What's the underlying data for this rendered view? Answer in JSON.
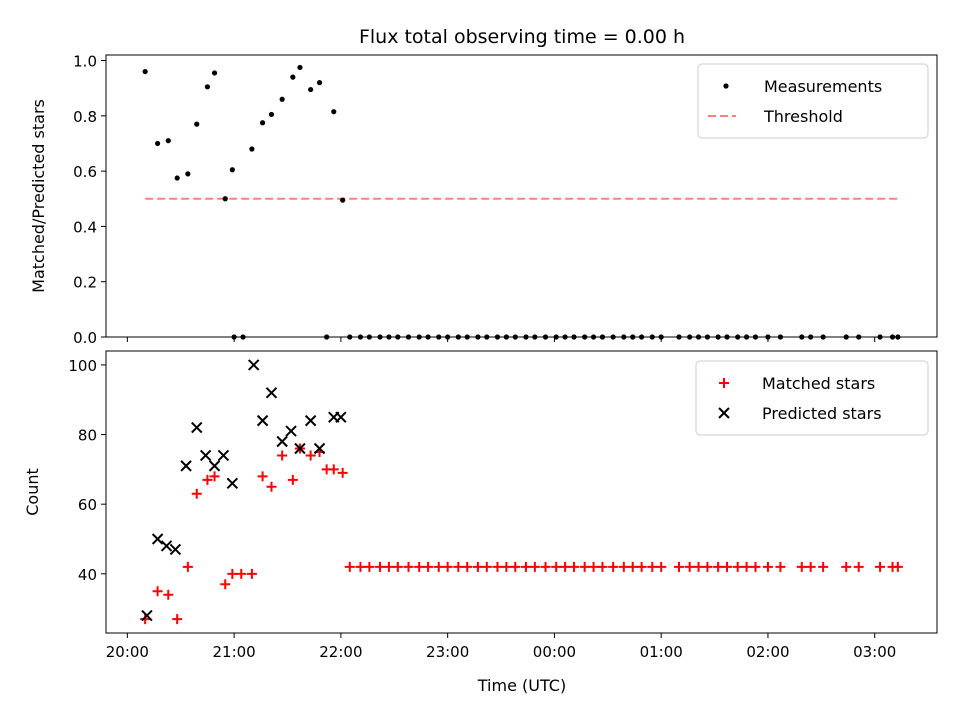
{
  "chart_data": [
    {
      "type": "scatter",
      "title": "Flux total observing time = 0.00 h",
      "ylabel": "Matched/Predicted stars",
      "ylim": [
        0,
        1.02
      ],
      "yticks": [
        0.0,
        0.2,
        0.4,
        0.6,
        0.8,
        1.0
      ],
      "legend_position": "top-right",
      "series": [
        {
          "name": "Measurements",
          "color": "#000000",
          "marker": "dot",
          "points": [
            [
              "20:10",
              0.96
            ],
            [
              "20:17",
              0.7
            ],
            [
              "20:23",
              0.71
            ],
            [
              "20:28",
              0.575
            ],
            [
              "20:34",
              0.59
            ],
            [
              "20:39",
              0.77
            ],
            [
              "20:45",
              0.905
            ],
            [
              "20:49",
              0.955
            ],
            [
              "20:55",
              0.5
            ],
            [
              "20:59",
              0.605
            ],
            [
              "21:00",
              0.0
            ],
            [
              "21:05",
              0.0
            ],
            [
              "21:10",
              0.68
            ],
            [
              "21:16",
              0.775
            ],
            [
              "21:21",
              0.805
            ],
            [
              "21:27",
              0.86
            ],
            [
              "21:33",
              0.94
            ],
            [
              "21:37",
              0.975
            ],
            [
              "21:43",
              0.895
            ],
            [
              "21:48",
              0.92
            ],
            [
              "21:52",
              0.0
            ],
            [
              "21:56",
              0.815
            ],
            [
              "22:01",
              0.495
            ],
            [
              "22:05",
              0.0
            ],
            [
              "22:11",
              0.0
            ],
            [
              "22:16",
              0.0
            ],
            [
              "22:22",
              0.0
            ],
            [
              "22:27",
              0.0
            ],
            [
              "22:32",
              0.0
            ],
            [
              "22:38",
              0.0
            ],
            [
              "22:44",
              0.0
            ],
            [
              "22:49",
              0.0
            ],
            [
              "22:55",
              0.0
            ],
            [
              "23:00",
              0.0
            ],
            [
              "23:06",
              0.0
            ],
            [
              "23:11",
              0.0
            ],
            [
              "23:17",
              0.0
            ],
            [
              "23:22",
              0.0
            ],
            [
              "23:28",
              0.0
            ],
            [
              "23:33",
              0.0
            ],
            [
              "23:38",
              0.0
            ],
            [
              "23:44",
              0.0
            ],
            [
              "23:49",
              0.0
            ],
            [
              "23:55",
              0.0
            ],
            [
              "00:01",
              0.0
            ],
            [
              "00:06",
              0.0
            ],
            [
              "00:11",
              0.0
            ],
            [
              "00:17",
              0.0
            ],
            [
              "00:22",
              0.0
            ],
            [
              "00:27",
              0.0
            ],
            [
              "00:33",
              0.0
            ],
            [
              "00:39",
              0.0
            ],
            [
              "00:44",
              0.0
            ],
            [
              "00:49",
              0.0
            ],
            [
              "00:55",
              0.0
            ],
            [
              "01:00",
              0.0
            ],
            [
              "01:10",
              0.0
            ],
            [
              "01:16",
              0.0
            ],
            [
              "01:21",
              0.0
            ],
            [
              "01:26",
              0.0
            ],
            [
              "01:32",
              0.0
            ],
            [
              "01:37",
              0.0
            ],
            [
              "01:43",
              0.0
            ],
            [
              "01:48",
              0.0
            ],
            [
              "01:53",
              0.0
            ],
            [
              "02:00",
              0.0
            ],
            [
              "02:07",
              0.0
            ],
            [
              "02:19",
              0.0
            ],
            [
              "02:24",
              0.0
            ],
            [
              "02:31",
              0.0
            ],
            [
              "02:44",
              0.0
            ],
            [
              "02:51",
              0.0
            ],
            [
              "03:03",
              0.0
            ],
            [
              "03:10",
              0.0
            ],
            [
              "03:13",
              0.0
            ]
          ]
        },
        {
          "name": "Threshold",
          "color": "#ff7f7f",
          "line": "dashed",
          "points": [
            [
              "20:10",
              0.5
            ],
            [
              "03:14",
              0.5
            ]
          ]
        }
      ]
    },
    {
      "type": "scatter",
      "xlabel": "Time (UTC)",
      "ylabel": "Count",
      "ylim": [
        23,
        104
      ],
      "yticks": [
        40,
        60,
        80,
        100
      ],
      "xticks": [
        "20:00",
        "21:00",
        "22:00",
        "23:00",
        "00:00",
        "01:00",
        "02:00",
        "03:00"
      ],
      "xlim": [
        "19:48",
        "03:35"
      ],
      "legend_position": "top-right",
      "series": [
        {
          "name": "Matched stars",
          "color": "#ff0000",
          "marker": "plus",
          "points": [
            [
              "20:10",
              27
            ],
            [
              "20:17",
              35
            ],
            [
              "20:23",
              34
            ],
            [
              "20:28",
              27
            ],
            [
              "20:34",
              42
            ],
            [
              "20:39",
              63
            ],
            [
              "20:45",
              67
            ],
            [
              "20:49",
              68
            ],
            [
              "20:55",
              37
            ],
            [
              "20:59",
              40
            ],
            [
              "21:04",
              40
            ],
            [
              "21:10",
              40
            ],
            [
              "21:16",
              68
            ],
            [
              "21:21",
              65
            ],
            [
              "21:27",
              74
            ],
            [
              "21:33",
              67
            ],
            [
              "21:37",
              76
            ],
            [
              "21:43",
              74
            ],
            [
              "21:48",
              75
            ],
            [
              "21:52",
              70
            ],
            [
              "21:56",
              70
            ],
            [
              "22:01",
              69
            ],
            [
              "22:05",
              42
            ],
            [
              "22:11",
              42
            ],
            [
              "22:16",
              42
            ],
            [
              "22:22",
              42
            ],
            [
              "22:27",
              42
            ],
            [
              "22:32",
              42
            ],
            [
              "22:38",
              42
            ],
            [
              "22:44",
              42
            ],
            [
              "22:49",
              42
            ],
            [
              "22:55",
              42
            ],
            [
              "23:00",
              42
            ],
            [
              "23:06",
              42
            ],
            [
              "23:11",
              42
            ],
            [
              "23:17",
              42
            ],
            [
              "23:22",
              42
            ],
            [
              "23:28",
              42
            ],
            [
              "23:33",
              42
            ],
            [
              "23:38",
              42
            ],
            [
              "23:44",
              42
            ],
            [
              "23:49",
              42
            ],
            [
              "23:55",
              42
            ],
            [
              "00:01",
              42
            ],
            [
              "00:06",
              42
            ],
            [
              "00:11",
              42
            ],
            [
              "00:17",
              42
            ],
            [
              "00:22",
              42
            ],
            [
              "00:27",
              42
            ],
            [
              "00:33",
              42
            ],
            [
              "00:39",
              42
            ],
            [
              "00:44",
              42
            ],
            [
              "00:49",
              42
            ],
            [
              "00:55",
              42
            ],
            [
              "01:00",
              42
            ],
            [
              "01:10",
              42
            ],
            [
              "01:16",
              42
            ],
            [
              "01:21",
              42
            ],
            [
              "01:26",
              42
            ],
            [
              "01:32",
              42
            ],
            [
              "01:37",
              42
            ],
            [
              "01:43",
              42
            ],
            [
              "01:48",
              42
            ],
            [
              "01:53",
              42
            ],
            [
              "02:00",
              42
            ],
            [
              "02:07",
              42
            ],
            [
              "02:19",
              42
            ],
            [
              "02:24",
              42
            ],
            [
              "02:31",
              42
            ],
            [
              "02:44",
              42
            ],
            [
              "02:51",
              42
            ],
            [
              "03:03",
              42
            ],
            [
              "03:10",
              42
            ],
            [
              "03:13",
              42
            ]
          ]
        },
        {
          "name": "Predicted stars",
          "color": "#000000",
          "marker": "x",
          "points": [
            [
              "20:11",
              28
            ],
            [
              "20:17",
              50
            ],
            [
              "20:22",
              48
            ],
            [
              "20:27",
              47
            ],
            [
              "20:33",
              71
            ],
            [
              "20:39",
              82
            ],
            [
              "20:44",
              74
            ],
            [
              "20:49",
              71
            ],
            [
              "20:54",
              74
            ],
            [
              "20:59",
              66
            ],
            [
              "21:11",
              100
            ],
            [
              "21:16",
              84
            ],
            [
              "21:21",
              92
            ],
            [
              "21:27",
              78
            ],
            [
              "21:32",
              81
            ],
            [
              "21:37",
              76
            ],
            [
              "21:43",
              84
            ],
            [
              "21:48",
              76
            ],
            [
              "21:56",
              85
            ],
            [
              "22:00",
              85
            ]
          ]
        }
      ]
    }
  ]
}
